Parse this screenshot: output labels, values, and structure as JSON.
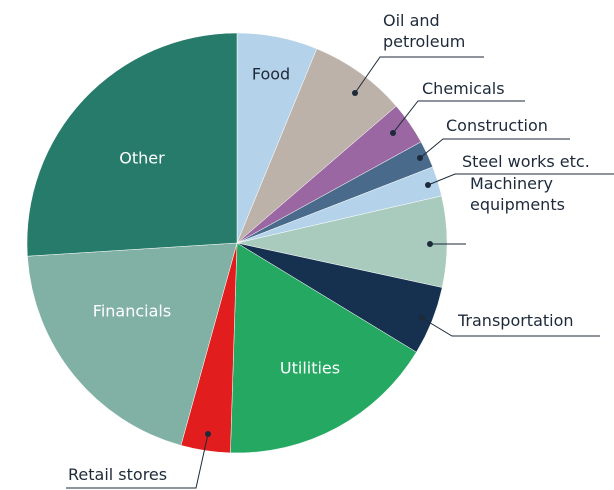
{
  "chart_data": {
    "type": "pie",
    "categories": [
      "Food",
      "Oil and petroleum",
      "Chemicals",
      "Construction",
      "Steel works etc.",
      "Machinery equipments",
      "Transportation",
      "Utilities",
      "Retail stores",
      "Financials",
      "Other"
    ],
    "values": [
      6.2,
      7.5,
      3.3,
      2.1,
      2.3,
      7,
      5.3,
      16.8,
      3.8,
      19.7,
      26
    ],
    "colors": [
      "#b4d2e9",
      "#bcb2a9",
      "#9a67a2",
      "#4a6a8b",
      "#b4d2e9",
      "#a8cbbe",
      "#16304f",
      "#25a862",
      "#e11d1d",
      "#80b1a4",
      "#277b6a"
    ]
  }
}
